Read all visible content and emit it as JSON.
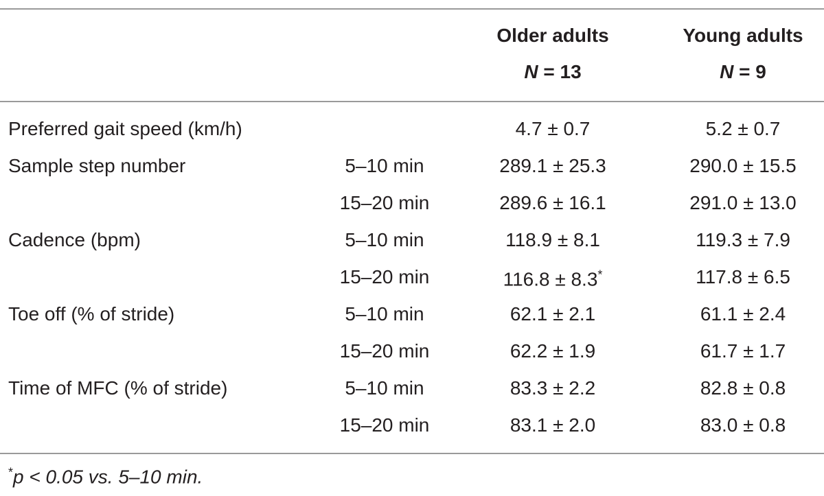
{
  "table": {
    "header": [
      {
        "title": "Older adults",
        "n_symbol": "N",
        "n_value": "= 13"
      },
      {
        "title": "Young adults",
        "n_symbol": "N",
        "n_value": "= 9"
      }
    ],
    "rows": [
      {
        "label": "Preferred gait speed (km/h)",
        "time": null,
        "older": "4.7 ± 0.7",
        "young": "5.2 ± 0.7"
      },
      {
        "label": "Sample step number",
        "time": "5–10 min",
        "older": "289.1 ± 25.3",
        "young": "290.0 ± 15.5"
      },
      {
        "label": null,
        "time": "15–20 min",
        "older": "289.6 ± 16.1",
        "young": "291.0 ± 13.0"
      },
      {
        "label": "Cadence (bpm)",
        "time": "5–10 min",
        "older": "118.9 ± 8.1",
        "young": "119.3 ± 7.9"
      },
      {
        "label": null,
        "time": "15–20 min",
        "older": "116.8 ± 8.3",
        "older_mark": "*",
        "young": "117.8 ± 6.5"
      },
      {
        "label": "Toe off (% of stride)",
        "time": "5–10 min",
        "older": "62.1 ± 2.1",
        "young": "61.1 ± 2.4"
      },
      {
        "label": null,
        "time": "15–20 min",
        "older": "62.2 ± 1.9",
        "young": "61.7 ± 1.7"
      },
      {
        "label": "Time of MFC (% of stride)",
        "time": "5–10 min",
        "older": "83.3 ± 2.2",
        "young": "82.8 ± 0.8"
      },
      {
        "label": null,
        "time": "15–20 min",
        "older": "83.1 ± 2.0",
        "young": "83.0 ± 0.8"
      }
    ],
    "footnote": {
      "mark": "*",
      "text": "p < 0.05 vs. 5–10 min."
    }
  }
}
